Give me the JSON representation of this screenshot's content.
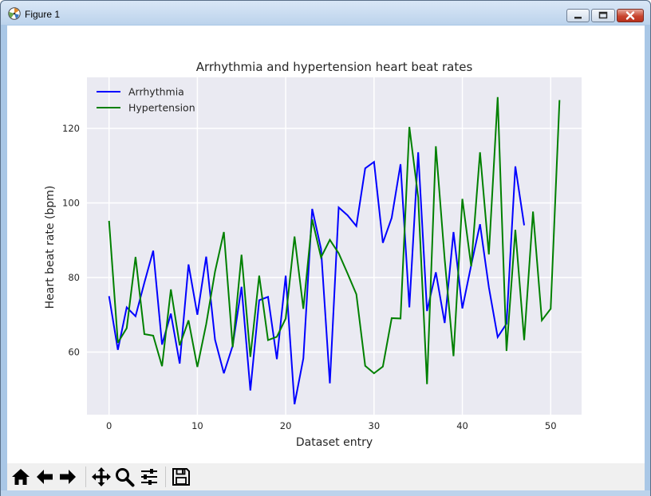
{
  "window": {
    "title": "Figure 1"
  },
  "colors": {
    "plot_background": "#eaeaf2",
    "grid": "#ffffff",
    "arrhythmia": "#0000ff",
    "hypertension": "#008000"
  },
  "toolbar": {
    "buttons": [
      "home-icon",
      "back-icon",
      "forward-icon",
      "pan-icon",
      "zoom-icon",
      "configure-subplots-icon",
      "save-icon"
    ]
  },
  "chart_data": {
    "type": "line",
    "title": "Arrhythmia and hypertension heart beat rates",
    "xlabel": "Dataset entry",
    "ylabel": "Heart beat rate (bpm)",
    "xlim": [
      -2.5,
      53.5
    ],
    "ylim": [
      43.2,
      133.7
    ],
    "xticks": [
      0,
      10,
      20,
      30,
      40,
      50
    ],
    "yticks": [
      60,
      80,
      100,
      120
    ],
    "xtick_labels": [
      "0",
      "10",
      "20",
      "30",
      "40",
      "50"
    ],
    "ytick_labels": [
      "60",
      "80",
      "100",
      "120"
    ],
    "grid": true,
    "legend_location": "upper-left",
    "series": [
      {
        "name": "Arrhythmia",
        "color": "#0000ff",
        "x": [
          0,
          1,
          2,
          3,
          4,
          5,
          6,
          7,
          8,
          9,
          10,
          11,
          12,
          13,
          14,
          15,
          16,
          17,
          18,
          19,
          20,
          21,
          22,
          23,
          24,
          25,
          26,
          27,
          28,
          29,
          30,
          31,
          32,
          33,
          34,
          35,
          36,
          37,
          38,
          39,
          40,
          41,
          42,
          43,
          44,
          45,
          46,
          47
        ],
        "values": [
          75.0,
          60.6,
          72.0,
          69.6,
          78.6,
          87.2,
          62.0,
          70.3,
          56.9,
          83.5,
          70.0,
          85.6,
          63.3,
          54.3,
          61.7,
          77.5,
          49.7,
          73.9,
          74.8,
          58.1,
          80.5,
          46.0,
          58.3,
          98.4,
          87.7,
          51.6,
          98.8,
          96.7,
          93.8,
          109.3,
          111.0,
          89.3,
          96.0,
          110.4,
          72.0,
          113.6,
          71.0,
          81.4,
          67.8,
          92.2,
          71.7,
          83.3,
          94.3,
          77.4,
          64.0,
          67.6,
          109.8,
          94.0
        ]
      },
      {
        "name": "Hypertension",
        "color": "#008000",
        "x": [
          0,
          1,
          2,
          3,
          4,
          5,
          6,
          7,
          8,
          9,
          10,
          11,
          12,
          13,
          14,
          15,
          16,
          17,
          18,
          19,
          20,
          21,
          22,
          23,
          24,
          25,
          26,
          27,
          28,
          29,
          30,
          31,
          32,
          33,
          34,
          35,
          36,
          37,
          38,
          39,
          40,
          41,
          42,
          43,
          44,
          45,
          46,
          47,
          48,
          49,
          50,
          51
        ],
        "values": [
          95.2,
          62.5,
          66.4,
          85.5,
          64.8,
          64.4,
          56.2,
          76.8,
          61.8,
          68.5,
          56.0,
          67.5,
          81.6,
          92.2,
          61.3,
          86.1,
          58.7,
          80.5,
          63.2,
          64.1,
          69.0,
          91.0,
          71.6,
          95.6,
          85.4,
          90.1,
          86.5,
          81.1,
          75.5,
          56.3,
          54.3,
          56.1,
          69.1,
          69.0,
          120.4,
          101.5,
          51.4,
          115.2,
          84.9,
          58.9,
          101.1,
          83.0,
          113.6,
          86.2,
          128.4,
          60.3,
          92.8,
          63.2,
          97.7,
          68.5,
          71.6,
          127.6
        ]
      }
    ]
  }
}
